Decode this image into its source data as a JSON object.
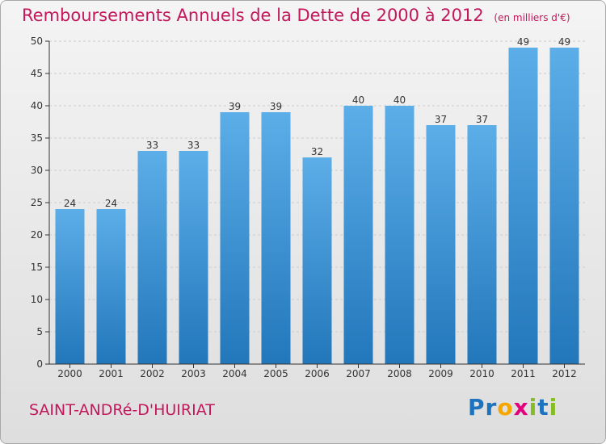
{
  "title": "Remboursements Annuels de la Dette de 2000 à 2012",
  "unit": "(en milliers d'€)",
  "commune": "SAINT-ANDRé-D'HUIRIAT",
  "logo": {
    "text": "Proxiti",
    "letters": [
      {
        "ch": "P",
        "color": "#1e73be"
      },
      {
        "ch": "r",
        "color": "#1e73be"
      },
      {
        "ch": "o",
        "color": "#f7a600"
      },
      {
        "ch": "x",
        "color": "#e5007d"
      },
      {
        "ch": "i",
        "color": "#86bc25"
      },
      {
        "ch": "t",
        "color": "#1e73be"
      },
      {
        "ch": "i",
        "color": "#86bc25"
      }
    ]
  },
  "colors": {
    "title": "#c2185b",
    "bar_top": "#5caee8",
    "bar_bottom": "#2277bb",
    "axis": "#333333",
    "grid": "#cccccc"
  },
  "chart_data": {
    "type": "bar",
    "categories": [
      "2000",
      "2001",
      "2002",
      "2003",
      "2004",
      "2005",
      "2006",
      "2007",
      "2008",
      "2009",
      "2010",
      "2011",
      "2012"
    ],
    "values": [
      24,
      24,
      33,
      33,
      39,
      39,
      32,
      40,
      40,
      37,
      37,
      49,
      49
    ],
    "ylim": [
      0,
      50
    ],
    "yticks": [
      0,
      5,
      10,
      15,
      20,
      25,
      30,
      35,
      40,
      45,
      50
    ],
    "grid": true,
    "data_labels": true
  }
}
